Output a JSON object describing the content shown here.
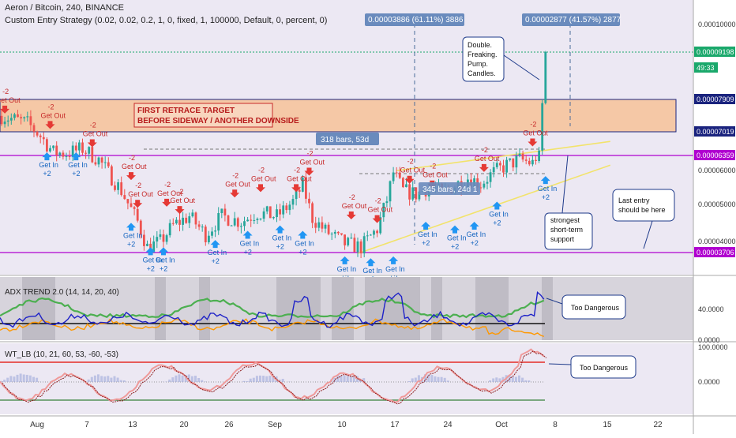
{
  "header": {
    "title": "Aeron / Bitcoin, 240, BINANCE",
    "strategy": "Custom Entry Strategy (0.02, 0.02, 0.2, 1, 0, fixed, 1, 100000, Default, 0, percent, 0)"
  },
  "colors": {
    "up": "#26a69a",
    "down": "#ef5350",
    "buy": "#2196f3",
    "sell": "#e53935",
    "magenta": "#b000d0",
    "yellow": "#f2e36b",
    "zone": "#f5c8a6",
    "bg": "#ece8f3"
  },
  "price_axis": {
    "ticks": [
      "0.00010000",
      "0.00009198",
      "0.00007909",
      "0.00007019",
      "0.00006359",
      "0.00006000",
      "0.00005000",
      "0.00004000",
      "0.00003706"
    ],
    "badges": [
      {
        "text": "0.00009198",
        "color": "#1aa86b"
      },
      {
        "text": "49:33",
        "color": "#1aa86b"
      },
      {
        "text": "0.00007909",
        "color": "#1a237e"
      },
      {
        "text": "0.00007019",
        "color": "#1a237e"
      },
      {
        "text": "0.00006359",
        "color": "#b000d0"
      },
      {
        "text": "0.00003706",
        "color": "#b000d0"
      }
    ]
  },
  "time_axis": [
    "Aug",
    "7",
    "13",
    "20",
    "26",
    "Sep",
    "10",
    "17",
    "24",
    "Oct",
    "8",
    "15",
    "22"
  ],
  "labels": {
    "measure1": "0.00003886 (61.11%) 3886",
    "measure2": "0.00002877 (41.57%) 2877",
    "bars1": "318 bars, 53d",
    "bars2": "345 bars, 24d 1",
    "target_line1": "FIRST RETRACE TARGET",
    "target_line2": "BEFORE SIDEWAY / ANOTHER DOWNSIDE",
    "callout_double": [
      "Double.",
      "Freaking.",
      "Pump.",
      "Candles."
    ],
    "callout_support": [
      "strongest",
      "short-term",
      "support"
    ],
    "callout_last": [
      "Last entry",
      "should be here"
    ],
    "danger1": "Too Dangerous",
    "danger2": "Too Dangerous",
    "sell_amount": "-2",
    "sell_label": "Get Out",
    "buy_label": "Get In",
    "buy_amount": "+2"
  },
  "adx": {
    "title": "ADX TREND 2.0 (14, 14, 20, 40)",
    "ticks": [
      "40.0000",
      "0.0000"
    ]
  },
  "wt": {
    "title": "WT_LB (10, 21, 60, 53, -60, -53)",
    "ticks": [
      "100.0000",
      "0.0000"
    ]
  },
  "chart_data": {
    "type": "candlestick",
    "title": "Aeron / Bitcoin, 240, BINANCE",
    "ylim": [
      3e-05,
      0.000107
    ],
    "close_path": [
      [
        0,
        7.45e-05
      ],
      [
        8,
        7.25e-05
      ],
      [
        12,
        6.9e-05
      ],
      [
        16,
        6.45e-05
      ],
      [
        20,
        6.42e-05
      ],
      [
        25,
        6.55e-05
      ],
      [
        30,
        6.25e-05
      ],
      [
        37,
        5.4e-05
      ],
      [
        42,
        4.55e-05
      ],
      [
        45,
        3.85e-05
      ],
      [
        49,
        4e-05
      ],
      [
        53,
        4.45e-05
      ],
      [
        58,
        4.7e-05
      ],
      [
        63,
        4.2e-05
      ],
      [
        68,
        4.7e-05
      ],
      [
        74,
        4.55e-05
      ],
      [
        79,
        4.8e-05
      ],
      [
        85,
        4.7e-05
      ],
      [
        90,
        5.1e-05
      ],
      [
        93,
        5.55e-05
      ],
      [
        96,
        4.65e-05
      ],
      [
        100,
        4.3e-05
      ],
      [
        106,
        3.95e-05
      ],
      [
        111,
        3.85e-05
      ],
      [
        116,
        4.35e-05
      ],
      [
        119,
        5.15e-05
      ],
      [
        121,
        5.9e-05
      ],
      [
        124,
        5.4e-05
      ],
      [
        128,
        5.3e-05
      ],
      [
        132,
        5.5e-05
      ],
      [
        136,
        5.35e-05
      ],
      [
        140,
        5.55e-05
      ],
      [
        144,
        5.75e-05
      ],
      [
        148,
        5.6e-05
      ],
      [
        152,
        5.9e-05
      ],
      [
        156,
        6.1e-05
      ],
      [
        160,
        6.25e-05
      ],
      [
        164,
        6.15e-05
      ],
      [
        166,
        6.5e-05
      ],
      [
        167,
        7.8e-05
      ],
      [
        168,
        9.2e-05
      ]
    ],
    "trades": [
      {
        "type": "sell",
        "x": 1,
        "y": 7.6e-05
      },
      {
        "type": "sell",
        "x": 15,
        "y": 7.18e-05
      },
      {
        "type": "buy",
        "x": 14,
        "y": 6.45e-05
      },
      {
        "type": "buy",
        "x": 23,
        "y": 6.45e-05
      },
      {
        "type": "sell",
        "x": 28,
        "y": 6.68e-05
      },
      {
        "type": "sell",
        "x": 40,
        "y": 5.78e-05
      },
      {
        "type": "sell",
        "x": 42,
        "y": 5.02e-05
      },
      {
        "type": "buy",
        "x": 40,
        "y": 4.52e-05
      },
      {
        "type": "sell",
        "x": 51,
        "y": 5.05e-05
      },
      {
        "type": "sell",
        "x": 55,
        "y": 4.85e-05
      },
      {
        "type": "buy",
        "x": 46,
        "y": 3.85e-05
      },
      {
        "type": "buy",
        "x": 50,
        "y": 3.85e-05
      },
      {
        "type": "buy",
        "x": 66,
        "y": 4.05e-05
      },
      {
        "type": "sell",
        "x": 72,
        "y": 5.3e-05
      },
      {
        "type": "buy",
        "x": 76,
        "y": 4.3e-05
      },
      {
        "type": "sell",
        "x": 80,
        "y": 5.45e-05
      },
      {
        "type": "buy",
        "x": 86,
        "y": 4.45e-05
      },
      {
        "type": "sell",
        "x": 91,
        "y": 5.45e-05
      },
      {
        "type": "buy",
        "x": 93,
        "y": 4.3e-05
      },
      {
        "type": "sell",
        "x": 95,
        "y": 5.9e-05
      },
      {
        "type": "sell",
        "x": 108,
        "y": 4.7e-05
      },
      {
        "type": "buy",
        "x": 106,
        "y": 3.6e-05
      },
      {
        "type": "sell",
        "x": 116,
        "y": 4.6e-05
      },
      {
        "type": "buy",
        "x": 114,
        "y": 3.55e-05
      },
      {
        "type": "buy",
        "x": 121,
        "y": 3.6e-05
      },
      {
        "type": "sell",
        "x": 126,
        "y": 5.68e-05
      },
      {
        "type": "sell",
        "x": 133,
        "y": 5.55e-05
      },
      {
        "type": "buy",
        "x": 131,
        "y": 4.55e-05
      },
      {
        "type": "buy",
        "x": 140,
        "y": 4.45e-05
      },
      {
        "type": "buy",
        "x": 146,
        "y": 4.55e-05
      },
      {
        "type": "sell",
        "x": 149,
        "y": 6e-05
      },
      {
        "type": "buy",
        "x": 153,
        "y": 5.1e-05
      },
      {
        "type": "sell",
        "x": 164,
        "y": 6.7e-05
      },
      {
        "type": "buy",
        "x": 168,
        "y": 5.8e-05
      }
    ],
    "trend_line_a": [
      [
        110,
        3.68e-05
      ],
      [
        188,
        6.1e-05
      ]
    ],
    "trend_line_b": [
      [
        122,
        5.95e-05
      ],
      [
        188,
        6.75e-05
      ]
    ]
  }
}
